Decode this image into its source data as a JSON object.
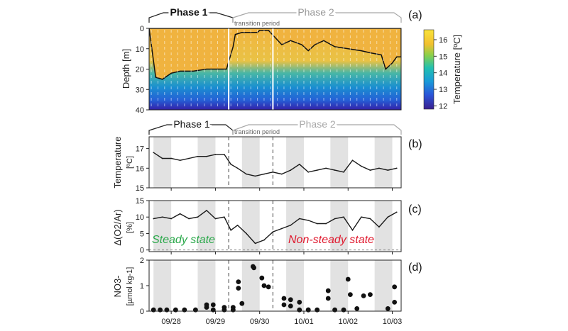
{
  "chart_data": [
    {
      "panel": "(a)",
      "type": "heatmap",
      "ylabel": "Depth [m]",
      "ylim": [
        40,
        0
      ],
      "yticks": [
        0,
        10,
        20,
        30,
        40
      ],
      "colorbar": {
        "label": "Temperature [ºC]",
        "ticks": [
          12,
          13,
          14,
          15,
          16
        ],
        "range": [
          11.8,
          16.6
        ]
      },
      "phase1_label": "Phase 1",
      "phase2_label": "Phase 2",
      "transition_label": "transition period",
      "contour_depth": [
        [
          27.6,
          16
        ],
        [
          27.65,
          24
        ],
        [
          27.8,
          25
        ],
        [
          28.0,
          22
        ],
        [
          28.2,
          21
        ],
        [
          28.5,
          21
        ],
        [
          28.8,
          20
        ],
        [
          29.0,
          20
        ],
        [
          29.25,
          20
        ],
        [
          29.4,
          9
        ],
        [
          29.45,
          3
        ],
        [
          29.6,
          2
        ],
        [
          29.95,
          2
        ],
        [
          30.0,
          1
        ],
        [
          30.2,
          1
        ],
        [
          30.5,
          8
        ],
        [
          30.7,
          6
        ],
        [
          30.95,
          8
        ],
        [
          31.1,
          11
        ],
        [
          31.25,
          8
        ],
        [
          31.45,
          6
        ],
        [
          31.7,
          9
        ],
        [
          32.0,
          10
        ],
        [
          32.3,
          11
        ],
        [
          32.5,
          12
        ],
        [
          32.75,
          13
        ],
        [
          32.85,
          20
        ],
        [
          33.0,
          17
        ],
        [
          33.1,
          14
        ]
      ]
    },
    {
      "panel": "(b)",
      "type": "line",
      "ylabel": "Temperature",
      "ylabel_unit": "[ºC]",
      "ylim": [
        15,
        17.6
      ],
      "yticks": [
        15,
        16,
        17
      ],
      "x": [
        27.6,
        27.8,
        28.0,
        28.2,
        28.4,
        28.6,
        28.8,
        29.0,
        29.2,
        29.35,
        29.5,
        29.7,
        29.9,
        30.1,
        30.3,
        30.5,
        30.7,
        30.9,
        31.1,
        31.3,
        31.5,
        31.7,
        31.9,
        32.1,
        32.3,
        32.5,
        32.7,
        32.9,
        33.1
      ],
      "values": [
        16.8,
        16.5,
        16.5,
        16.4,
        16.5,
        16.6,
        16.6,
        16.7,
        16.7,
        16.2,
        16.0,
        15.7,
        15.6,
        15.7,
        15.8,
        15.7,
        15.9,
        16.2,
        15.8,
        15.9,
        16.0,
        15.9,
        15.8,
        16.4,
        16.1,
        15.9,
        16.0,
        15.9,
        16.0
      ]
    },
    {
      "panel": "(c)",
      "type": "line",
      "ylabel": "Δ(O2/Ar)",
      "ylabel_unit": "[%]",
      "ylim": [
        -0.5,
        15
      ],
      "yticks": [
        0,
        5,
        10,
        15
      ],
      "steady_label": "Steady state",
      "nonsteady_label": "Non-steady state",
      "x": [
        27.6,
        27.8,
        28.0,
        28.2,
        28.4,
        28.6,
        28.8,
        29.0,
        29.2,
        29.35,
        29.5,
        29.7,
        29.9,
        30.1,
        30.3,
        30.5,
        30.7,
        30.9,
        31.1,
        31.3,
        31.5,
        31.7,
        31.9,
        32.1,
        32.3,
        32.5,
        32.7,
        32.9,
        33.1
      ],
      "values": [
        9.5,
        10.0,
        9.5,
        11.0,
        9.5,
        10.0,
        12.0,
        9.5,
        10.0,
        6.0,
        7.5,
        5.0,
        2.0,
        3.0,
        5.5,
        6.5,
        7.5,
        9.5,
        9.0,
        8.0,
        8.0,
        9.5,
        10.0,
        6.0,
        10.0,
        9.5,
        7.0,
        10.0,
        11.5
      ]
    },
    {
      "panel": "(d)",
      "type": "scatter",
      "ylabel": "NO3-",
      "ylabel_unit": "[µmol kg-1]",
      "ylim": [
        0,
        2
      ],
      "yticks": [
        0,
        1,
        2
      ],
      "xticks": [
        "09/28",
        "09/29",
        "09/30",
        "10/01",
        "10/02",
        "10/03"
      ],
      "x": [
        27.6,
        27.75,
        27.9,
        28.1,
        28.3,
        28.55,
        28.8,
        28.8,
        28.95,
        28.95,
        29.2,
        29.2,
        29.4,
        29.4,
        29.52,
        29.52,
        29.6,
        29.85,
        29.87,
        30.05,
        30.1,
        30.2,
        30.55,
        30.55,
        30.7,
        30.7,
        30.9,
        30.9,
        31.1,
        31.1,
        31.3,
        31.55,
        31.55,
        31.7,
        31.9,
        32.0,
        32.05,
        32.2,
        32.35,
        32.5,
        32.9,
        33.05,
        33.05
      ],
      "values": [
        0.05,
        0.05,
        0.05,
        0.05,
        0.05,
        0.05,
        0.15,
        0.25,
        0.05,
        0.25,
        0.05,
        0.15,
        0.15,
        0.05,
        1.15,
        0.9,
        0.3,
        1.75,
        1.7,
        1.3,
        1.0,
        0.95,
        0.5,
        0.25,
        0.45,
        0.2,
        0.35,
        0.05,
        0.05,
        0.05,
        0.05,
        0.8,
        0.5,
        0.05,
        0.05,
        1.25,
        0.65,
        0.1,
        0.6,
        0.65,
        0.1,
        0.35,
        0.95
      ]
    }
  ],
  "axis": {
    "xmin": 27.5,
    "xmax": 33.2,
    "day_ticks": [
      28,
      29,
      30,
      31,
      32,
      33
    ],
    "night_bands": [
      [
        27.6,
        28.0
      ],
      [
        28.6,
        29.0
      ],
      [
        29.6,
        30.0
      ],
      [
        30.6,
        31.0
      ],
      [
        31.6,
        32.0
      ],
      [
        32.6,
        33.0
      ]
    ],
    "transition": [
      29.3,
      30.3
    ]
  },
  "colors": {
    "band": "#e2e2e2",
    "line": "#1a1a1a",
    "steady": "#2aa84a",
    "nonsteady": "#e0182d",
    "phase1": "#222222",
    "phase2": "#a8a8a8"
  }
}
